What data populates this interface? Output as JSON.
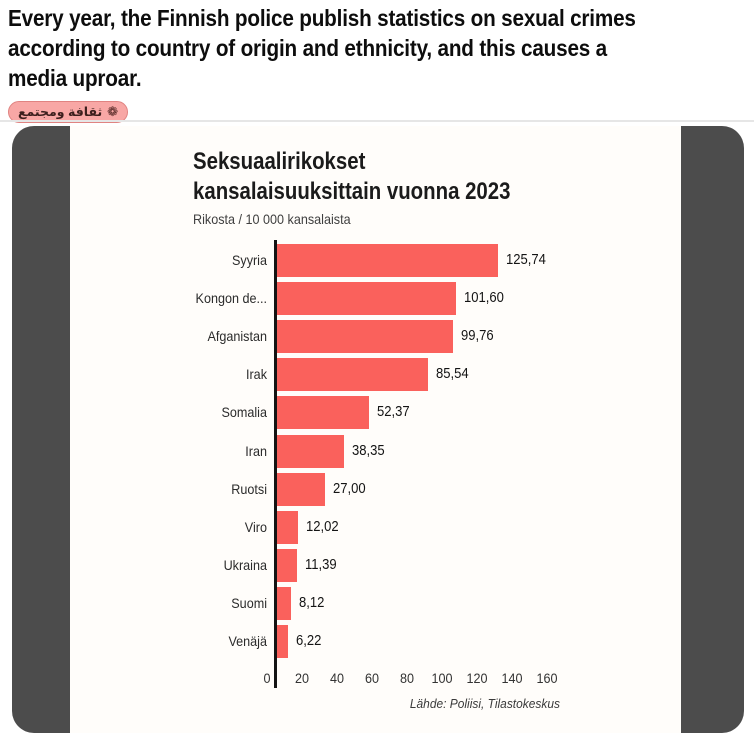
{
  "post": {
    "headline": "Every year, the Finnish police publish statistics on sexual crimes\naccording to country of origin and ethnicity, and this causes a\nmedia uproar.",
    "tag": {
      "label": "ثقافة ومجتمع",
      "icon": "rosette",
      "icon_glyph": "❁",
      "bg_color": "#f8a7a5",
      "text_color": "#3c1f1d"
    }
  },
  "chart_data": {
    "type": "bar",
    "orientation": "horizontal",
    "title": "Seksuaalirikokset kansalaisuuksittain vuonna 2023",
    "title_lines": [
      "Seksuaalirikokset",
      "kansalaisuuksittain vuonna 2023"
    ],
    "subtitle": "Rikosta / 10 000 kansalaista",
    "categories": [
      "Syyria",
      "Kongon de...",
      "Afganistan",
      "Irak",
      "Somalia",
      "Iran",
      "Ruotsi",
      "Viro",
      "Ukraina",
      "Suomi",
      "Venäjä"
    ],
    "values": [
      125.74,
      101.6,
      99.76,
      85.54,
      52.37,
      38.35,
      27.0,
      12.02,
      11.39,
      8.12,
      6.22
    ],
    "value_labels": [
      "125,74",
      "101,60",
      "99,76",
      "85,54",
      "52,37",
      "38,35",
      "27,00",
      "12,02",
      "11,39",
      "8,12",
      "6,22"
    ],
    "x_ticks": [
      0,
      20,
      40,
      60,
      80,
      100,
      120,
      140,
      160
    ],
    "x_tick_labels": [
      "0",
      "20",
      "40",
      "60",
      "80",
      "100",
      "120",
      "140",
      "160"
    ],
    "xlim": [
      0,
      160
    ],
    "xlabel": "",
    "ylabel": "",
    "grid": "off",
    "legend": "none",
    "bar_color": "#fa615c",
    "source": "Lähde: Poliisi, Tilastokeskus"
  },
  "colors": {
    "frame_bg": "#4c4c4c",
    "card_bg": "#fffdfa",
    "divider": "#e6e6e6",
    "bar": "#fa615c"
  }
}
